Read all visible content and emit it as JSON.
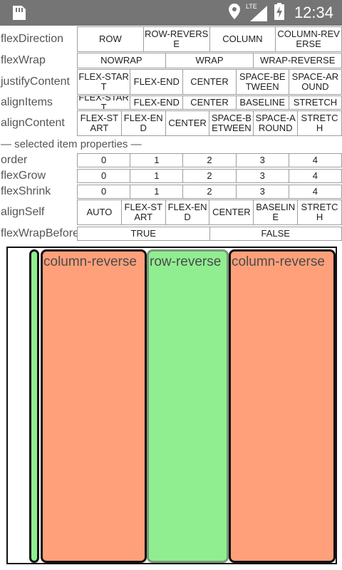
{
  "status_bar": {
    "time": "12:34",
    "network": "LTE",
    "icons": [
      "sd-card-icon",
      "location-icon",
      "signal-icon",
      "battery-charging-icon"
    ]
  },
  "controls": {
    "flexDirection": {
      "label": "flexDirection",
      "options": [
        "ROW",
        "ROW-REVERSE",
        "COLUMN",
        "COLUMN-REVERSE"
      ]
    },
    "flexWrap": {
      "label": "flexWrap",
      "options": [
        "NOWRAP",
        "WRAP",
        "WRAP-REVERSE"
      ]
    },
    "justifyContent": {
      "label": "justifyContent",
      "options": [
        "FLEX-START",
        "FLEX-END",
        "CENTER",
        "SPACE-BETWEEN",
        "SPACE-AROUND"
      ]
    },
    "alignItems": {
      "label": "alignItems",
      "options": [
        "FLEX-START",
        "FLEX-END",
        "CENTER",
        "BASELINE",
        "STRETCH"
      ]
    },
    "alignContent": {
      "label": "alignContent",
      "options": [
        "FLEX-START",
        "FLEX-END",
        "CENTER",
        "SPACE-BETWEEN",
        "SPACE-AROUND",
        "STRETCH"
      ]
    }
  },
  "selected_section_title": "— selected item properties —",
  "item_props": {
    "order": {
      "label": "order",
      "options": [
        "0",
        "1",
        "2",
        "3",
        "4"
      ]
    },
    "flexGrow": {
      "label": "flexGrow",
      "options": [
        "0",
        "1",
        "2",
        "3",
        "4"
      ]
    },
    "flexShrink": {
      "label": "flexShrink",
      "options": [
        "0",
        "1",
        "2",
        "3",
        "4"
      ]
    },
    "alignSelf": {
      "label": "alignSelf",
      "options": [
        "AUTO",
        "FLEX-START",
        "FLEX-END",
        "CENTER",
        "BASELINE",
        "STRETCH"
      ]
    },
    "flexWrapBefore": {
      "label": "flexWrapBefore",
      "options": [
        "TRUE",
        "FALSE"
      ]
    }
  },
  "stage_items": [
    {
      "text": "",
      "color": "#90ee90",
      "selected": true
    },
    {
      "text": "column-reverse",
      "color": "#ffa07a",
      "selected": false
    },
    {
      "text": "row-reverse",
      "color": "#90ee90",
      "selected": false
    },
    {
      "text": "column-reverse",
      "color": "#ffa07a",
      "selected": false
    }
  ]
}
